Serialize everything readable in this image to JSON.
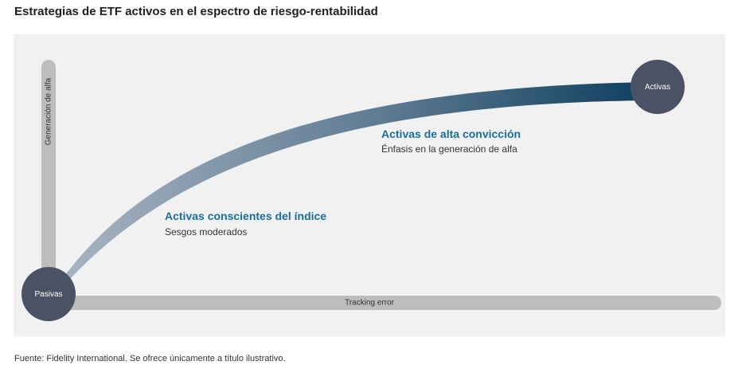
{
  "title": "Estrategias de ETF activos en el espectro de riesgo-rentabilidad",
  "axes": {
    "y_label": "Generación de alfa",
    "x_label": "Tracking error"
  },
  "nodes": {
    "start": "Pasivas",
    "end": "Activas"
  },
  "annotations": {
    "index_aware": {
      "heading": "Activas conscientes del índice",
      "description": "Sesgos moderados"
    },
    "high_conviction": {
      "heading": "Activas de alta convicción",
      "description": "Énfasis en la generación de alfa"
    }
  },
  "footer": "Fuente: Fidelity International. Se ofrece únicamente a título ilustrativo.",
  "colors": {
    "panel_bg": "#f1f1f1",
    "axis_bar": "#bdbdbd",
    "node_fill": "#4b5263",
    "accent_heading": "#1a6e9c",
    "curve_start": "#a7b3c2",
    "curve_end": "#0e3f5e"
  }
}
